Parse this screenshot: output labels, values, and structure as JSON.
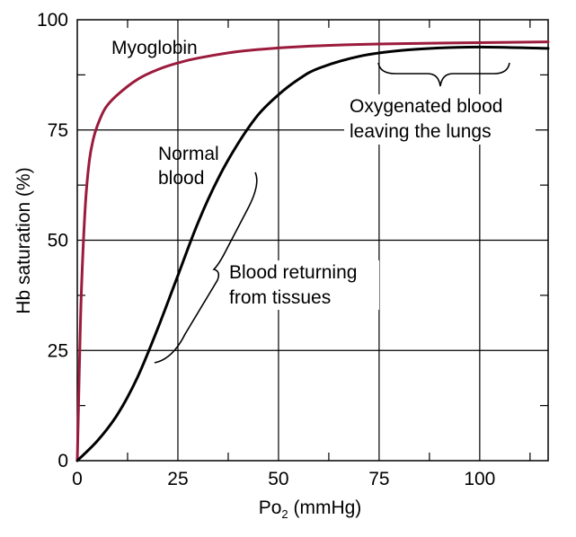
{
  "chart_data": {
    "type": "line",
    "xlabel_main": "Po",
    "xlabel_sub": "2",
    "xlabel_unit": " (mmHg)",
    "ylabel": "Hb saturation (%)",
    "xlim": [
      0,
      117
    ],
    "ylim": [
      0,
      100
    ],
    "x_ticks": [
      0,
      25,
      50,
      75,
      100
    ],
    "y_ticks": [
      0,
      25,
      50,
      75,
      100
    ],
    "x_tick_labels": [
      "0",
      "25",
      "50",
      "75",
      "100"
    ],
    "y_tick_labels": [
      "0",
      "25",
      "50",
      "75",
      "100"
    ],
    "grid": true,
    "series": [
      {
        "name": "Myoglobin",
        "color": "#9b1b3c",
        "points": [
          [
            0,
            0
          ],
          [
            0.5,
            20
          ],
          [
            1,
            38
          ],
          [
            2,
            58
          ],
          [
            3,
            68
          ],
          [
            4,
            73
          ],
          [
            5,
            76
          ],
          [
            7,
            80
          ],
          [
            10,
            83
          ],
          [
            15,
            86.5
          ],
          [
            20,
            88.7
          ],
          [
            25,
            90.2
          ],
          [
            30,
            91.3
          ],
          [
            40,
            92.8
          ],
          [
            50,
            93.6
          ],
          [
            60,
            94.1
          ],
          [
            75,
            94.5
          ],
          [
            90,
            94.7
          ],
          [
            100,
            94.8
          ],
          [
            117,
            95
          ]
        ]
      },
      {
        "name": "Normal blood",
        "color": "#000000",
        "points": [
          [
            0,
            0
          ],
          [
            5,
            4.5
          ],
          [
            10,
            10.5
          ],
          [
            15,
            19
          ],
          [
            20,
            30
          ],
          [
            25,
            42
          ],
          [
            30,
            54
          ],
          [
            35,
            64
          ],
          [
            40,
            72
          ],
          [
            45,
            78.5
          ],
          [
            50,
            83
          ],
          [
            55,
            86.5
          ],
          [
            60,
            89
          ],
          [
            70,
            91.7
          ],
          [
            80,
            93
          ],
          [
            90,
            93.6
          ],
          [
            100,
            93.8
          ],
          [
            117,
            93.5
          ]
        ]
      }
    ],
    "annotations": [
      {
        "text": "Oxygenated blood"
      },
      {
        "text": "leaving the lungs"
      },
      {
        "text": "Blood returning"
      },
      {
        "text": "from tissues"
      }
    ]
  }
}
